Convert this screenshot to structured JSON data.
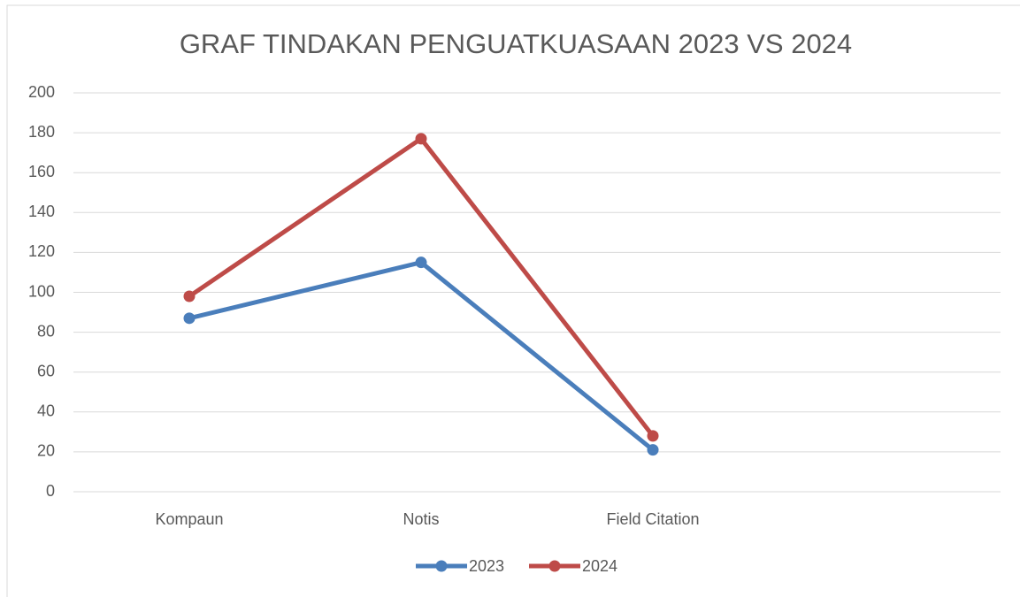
{
  "chart_data": {
    "type": "line",
    "title": "GRAF TINDAKAN PENGUATKUASAAN 2023 VS 2024",
    "categories": [
      "Kompaun",
      "Notis",
      "Field Citation",
      null
    ],
    "series": [
      {
        "name": "2023",
        "color": "#4a7ebb",
        "values": [
          87,
          115,
          21,
          null
        ]
      },
      {
        "name": "2024",
        "color": "#be4b48",
        "values": [
          98,
          177,
          28,
          null
        ]
      }
    ],
    "ylim": [
      0,
      200
    ],
    "yticks": [
      0,
      20,
      40,
      60,
      80,
      100,
      120,
      140,
      160,
      180,
      200
    ],
    "grid": true,
    "legend": "bottom"
  }
}
